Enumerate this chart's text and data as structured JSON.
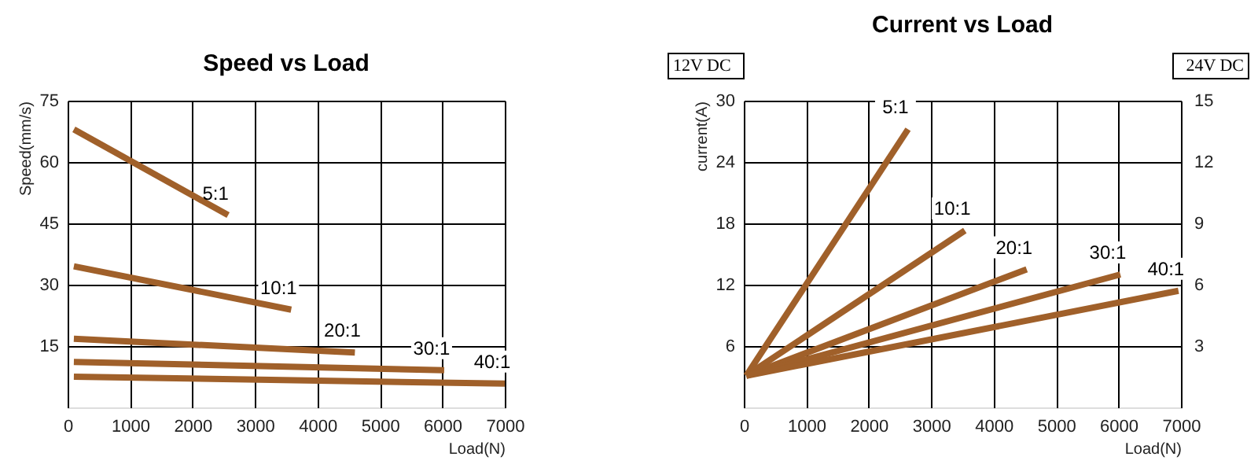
{
  "chart_data": [
    {
      "type": "line",
      "title": "Speed vs Load",
      "xlabel": "Load(N)",
      "ylabel": "Speed(mm/s)",
      "xlim": [
        0,
        7000
      ],
      "xticks": [
        0,
        1000,
        2000,
        3000,
        4000,
        5000,
        6000,
        7000
      ],
      "ylim": [
        0,
        75
      ],
      "yticks": [
        15,
        30,
        45,
        60,
        75
      ],
      "grid": true,
      "legend": false,
      "marker": "none",
      "line_style": "solid",
      "series": [
        {
          "name": "5:1",
          "color": "#a0602a",
          "x": [
            100,
            2570
          ],
          "values": [
            68,
            47
          ]
        },
        {
          "name": "10:1",
          "color": "#a0602a",
          "x": [
            100,
            3580
          ],
          "values": [
            34.5,
            23.9
          ]
        },
        {
          "name": "20:1",
          "color": "#a0602a",
          "x": [
            100,
            4600
          ],
          "values": [
            16.8,
            13.4
          ]
        },
        {
          "name": "30:1",
          "color": "#a0602a",
          "x": [
            100,
            6030
          ],
          "values": [
            11.1,
            9.1
          ]
        },
        {
          "name": "40:1",
          "color": "#a0602a",
          "x": [
            100,
            7000
          ],
          "values": [
            7.5,
            5.8
          ]
        }
      ]
    },
    {
      "type": "line",
      "title": "Current vs Load",
      "xlabel": "Load(N)",
      "ylabel": "current(A)",
      "y2label": "24V DC",
      "annotations": [
        "12V DC"
      ],
      "xlim": [
        0,
        7000
      ],
      "xticks": [
        0,
        1000,
        2000,
        3000,
        4000,
        5000,
        6000,
        7000
      ],
      "ylim": [
        0,
        30
      ],
      "yticks": [
        6,
        12,
        18,
        24,
        30
      ],
      "y2lim": [
        0,
        15
      ],
      "y2ticks": [
        3,
        6,
        9,
        12,
        15
      ],
      "grid": true,
      "legend": false,
      "marker": "none",
      "line_style": "solid",
      "series": [
        {
          "name": "5:1",
          "color": "#a0602a",
          "x": [
            40,
            2630
          ],
          "values": [
            3.1,
            27.2
          ]
        },
        {
          "name": "10:1",
          "color": "#a0602a",
          "x": [
            40,
            3540
          ],
          "values": [
            3.1,
            17.3
          ]
        },
        {
          "name": "20:1",
          "color": "#a0602a",
          "x": [
            40,
            4530
          ],
          "values": [
            3.1,
            13.5
          ]
        },
        {
          "name": "30:1",
          "color": "#a0602a",
          "x": [
            40,
            6030
          ],
          "values": [
            3.1,
            13.0
          ]
        },
        {
          "name": "40:1",
          "color": "#a0602a",
          "x": [
            40,
            6960
          ],
          "values": [
            3.1,
            11.4
          ]
        }
      ]
    }
  ]
}
